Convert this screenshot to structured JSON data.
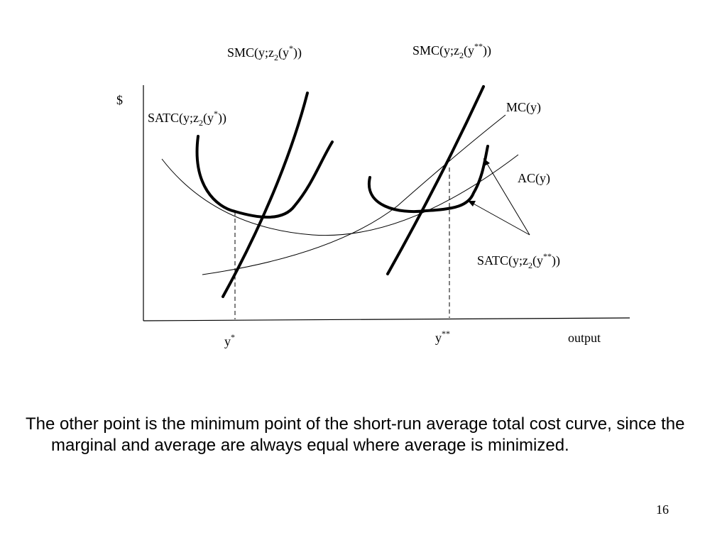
{
  "diagram": {
    "axis_y_label": "$",
    "axis_x_label": "output",
    "smc_star": {
      "base": "SMC(y;z",
      "sub": "2",
      "mid": "(y",
      "sup": "*",
      "end": "))"
    },
    "smc_dstar": {
      "base": "SMC(y;z",
      "sub": "2",
      "mid": "(y",
      "sup": "**",
      "end": "))"
    },
    "satc_star": {
      "base": "SATC(y;z",
      "sub": "2",
      "mid": "(y",
      "sup": "*",
      "end": "))"
    },
    "satc_dstar": {
      "base": "SATC(y;z",
      "sub": "2",
      "mid": "(y",
      "sup": "**",
      "end": "))"
    },
    "mc_label": "MC(y)",
    "ac_label": "AC(y)",
    "ystar": {
      "base": "y",
      "sup": "*"
    },
    "ydstar": {
      "base": "y",
      "sup": "**"
    }
  },
  "caption": "The other point is the minimum point of the short-run average total cost curve, since the marginal and average are always equal where average is minimized.",
  "page_number": "16"
}
